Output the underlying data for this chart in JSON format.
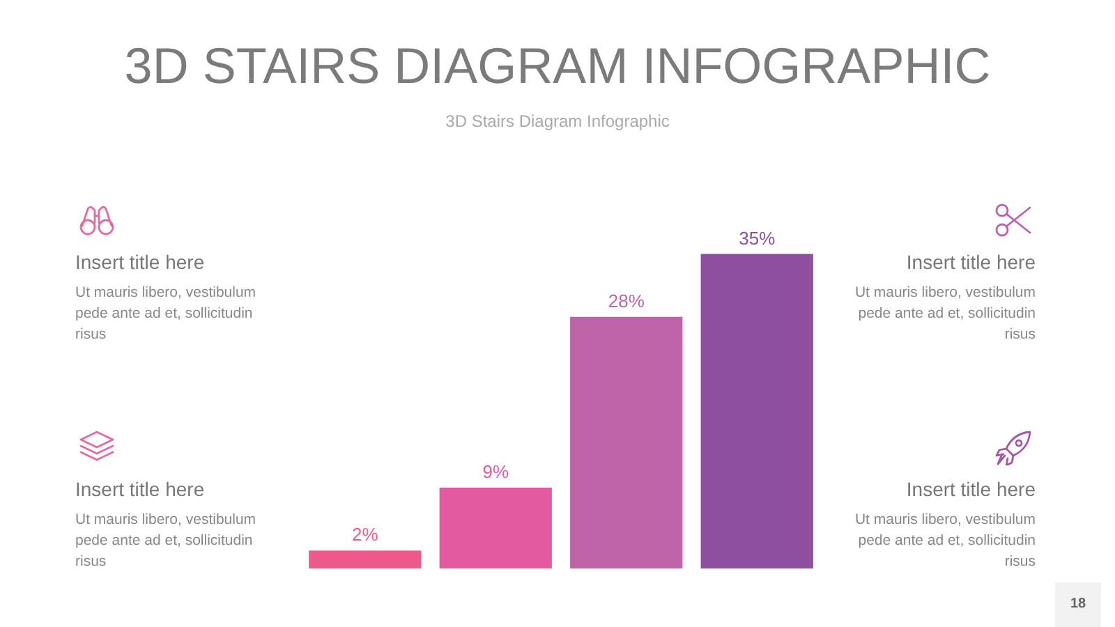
{
  "chart_data": {
    "type": "bar",
    "title": "3D STAIRS DIAGRAM INFOGRAPHIC",
    "subtitle": "3D Stairs Diagram Infographic",
    "categories": [
      null,
      null,
      null,
      null
    ],
    "values": [
      2,
      9,
      28,
      35
    ],
    "colors": [
      "#ef5a8c",
      "#e45aa2",
      "#bf63a8",
      "#8f4f9f"
    ],
    "value_labels": [
      "2%",
      "9%",
      "28%",
      "35%"
    ],
    "annotations": [
      "Insert title here",
      "Ut mauris libero, vestibulum pede ante ad et, sollicitudin risus",
      "Insert title here",
      "Ut mauris libero, vestibulum pede ante ad et, sollicitudin risus",
      "Insert title here",
      "Ut mauris libero, vestibulum pede ante ad et, sollicitudin risus",
      "Insert title here",
      "Ut mauris libero, vestibulum pede ante ad et, sollicitudin risus",
      "18"
    ]
  }
}
